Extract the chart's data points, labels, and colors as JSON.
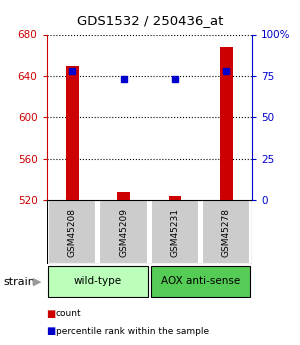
{
  "title": "GDS1532 / 250436_at",
  "samples": [
    "GSM45208",
    "GSM45209",
    "GSM45231",
    "GSM45278"
  ],
  "counts": [
    650,
    528,
    524,
    668
  ],
  "percentiles": [
    78,
    73,
    73,
    78
  ],
  "ylim_left": [
    520,
    680
  ],
  "ylim_right": [
    0,
    100
  ],
  "yticks_left": [
    520,
    560,
    600,
    640,
    680
  ],
  "yticks_right": [
    0,
    25,
    50,
    75,
    100
  ],
  "ytick_labels_right": [
    "0",
    "25",
    "50",
    "75",
    "100%"
  ],
  "strain_groups": [
    {
      "label": "wild-type",
      "samples": [
        0,
        1
      ],
      "color": "#bbffbb"
    },
    {
      "label": "AOX anti-sense",
      "samples": [
        2,
        3
      ],
      "color": "#55cc55"
    }
  ],
  "bar_color": "#cc0000",
  "dot_color": "#0000cc",
  "left_axis_color": "#cc0000",
  "right_axis_color": "#0000cc",
  "sample_box_color": "#cccccc",
  "background_color": "#ffffff"
}
